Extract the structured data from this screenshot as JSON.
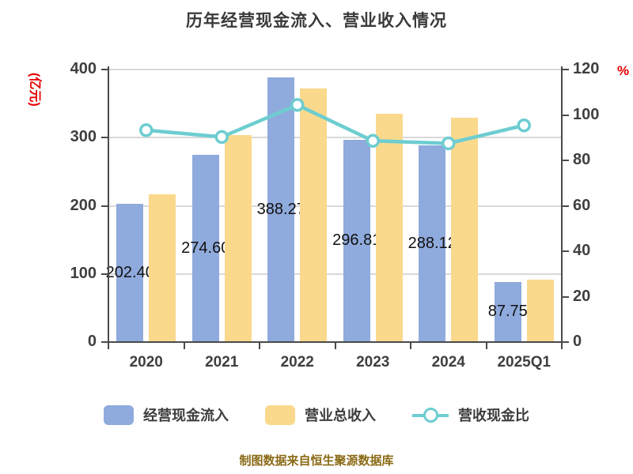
{
  "title": "历年经营现金流入、营业收入情况",
  "footer": "制图数据来自恒生聚源数据库",
  "left_axis": {
    "unit": "(亿元)",
    "ticks": [
      0,
      100,
      200,
      300,
      400
    ],
    "max": 400,
    "unit_color": "#e60000"
  },
  "right_axis": {
    "unit": "%",
    "ticks": [
      0,
      20,
      40,
      60,
      80,
      100,
      120
    ],
    "max": 120,
    "unit_color": "#e60000"
  },
  "colors": {
    "cash_inflow_bar": "#8faadc",
    "revenue_bar": "#fad98d",
    "ratio_line": "#6dcdd1",
    "marker_fill": "#ffffff",
    "grid": "#d9d9d9",
    "axis": "#4a4a4a",
    "label_text": "#111111",
    "tick_text": "#3f3f3f"
  },
  "chart_data": {
    "type": "bar",
    "categories": [
      "2020",
      "2021",
      "2022",
      "2023",
      "2024",
      "2025Q1"
    ],
    "series": [
      {
        "name": "经营现金流入",
        "type": "bar",
        "axis": "left",
        "color": "#8faadc",
        "values": [
          202.4,
          274.6,
          388.27,
          296.81,
          288.12,
          87.75
        ],
        "labels": [
          "202.40",
          "274.60",
          "388.27",
          "296.81",
          "288.12",
          "87.75"
        ]
      },
      {
        "name": "营业总收入",
        "type": "bar",
        "axis": "left",
        "color": "#fad98d",
        "values": [
          217,
          304,
          372,
          335,
          329,
          92
        ]
      },
      {
        "name": "营收现金比",
        "type": "line",
        "axis": "right",
        "color": "#6dcdd1",
        "values": [
          93.3,
          90.3,
          104.4,
          88.6,
          87.5,
          95.4
        ]
      }
    ],
    "title": "历年经营现金流入、营业收入情况",
    "xlabel": "",
    "ylabel_left": "(亿元)",
    "ylabel_right": "%",
    "left_ylim": [
      0,
      400
    ],
    "right_ylim": [
      0,
      120
    ],
    "grid": "horizontal, at left-axis 100/200/300/400",
    "legend_position": "bottom",
    "data_label_note": "labels show 经营现金流入 values, centered mid-bar, partially covered by revenue bars"
  },
  "legend": [
    {
      "label": "经营现金流入",
      "swatch": "bar",
      "color": "#8faadc"
    },
    {
      "label": "营业总收入",
      "swatch": "bar",
      "color": "#fad98d"
    },
    {
      "label": "营收现金比",
      "swatch": "line-marker",
      "color": "#6dcdd1"
    }
  ]
}
